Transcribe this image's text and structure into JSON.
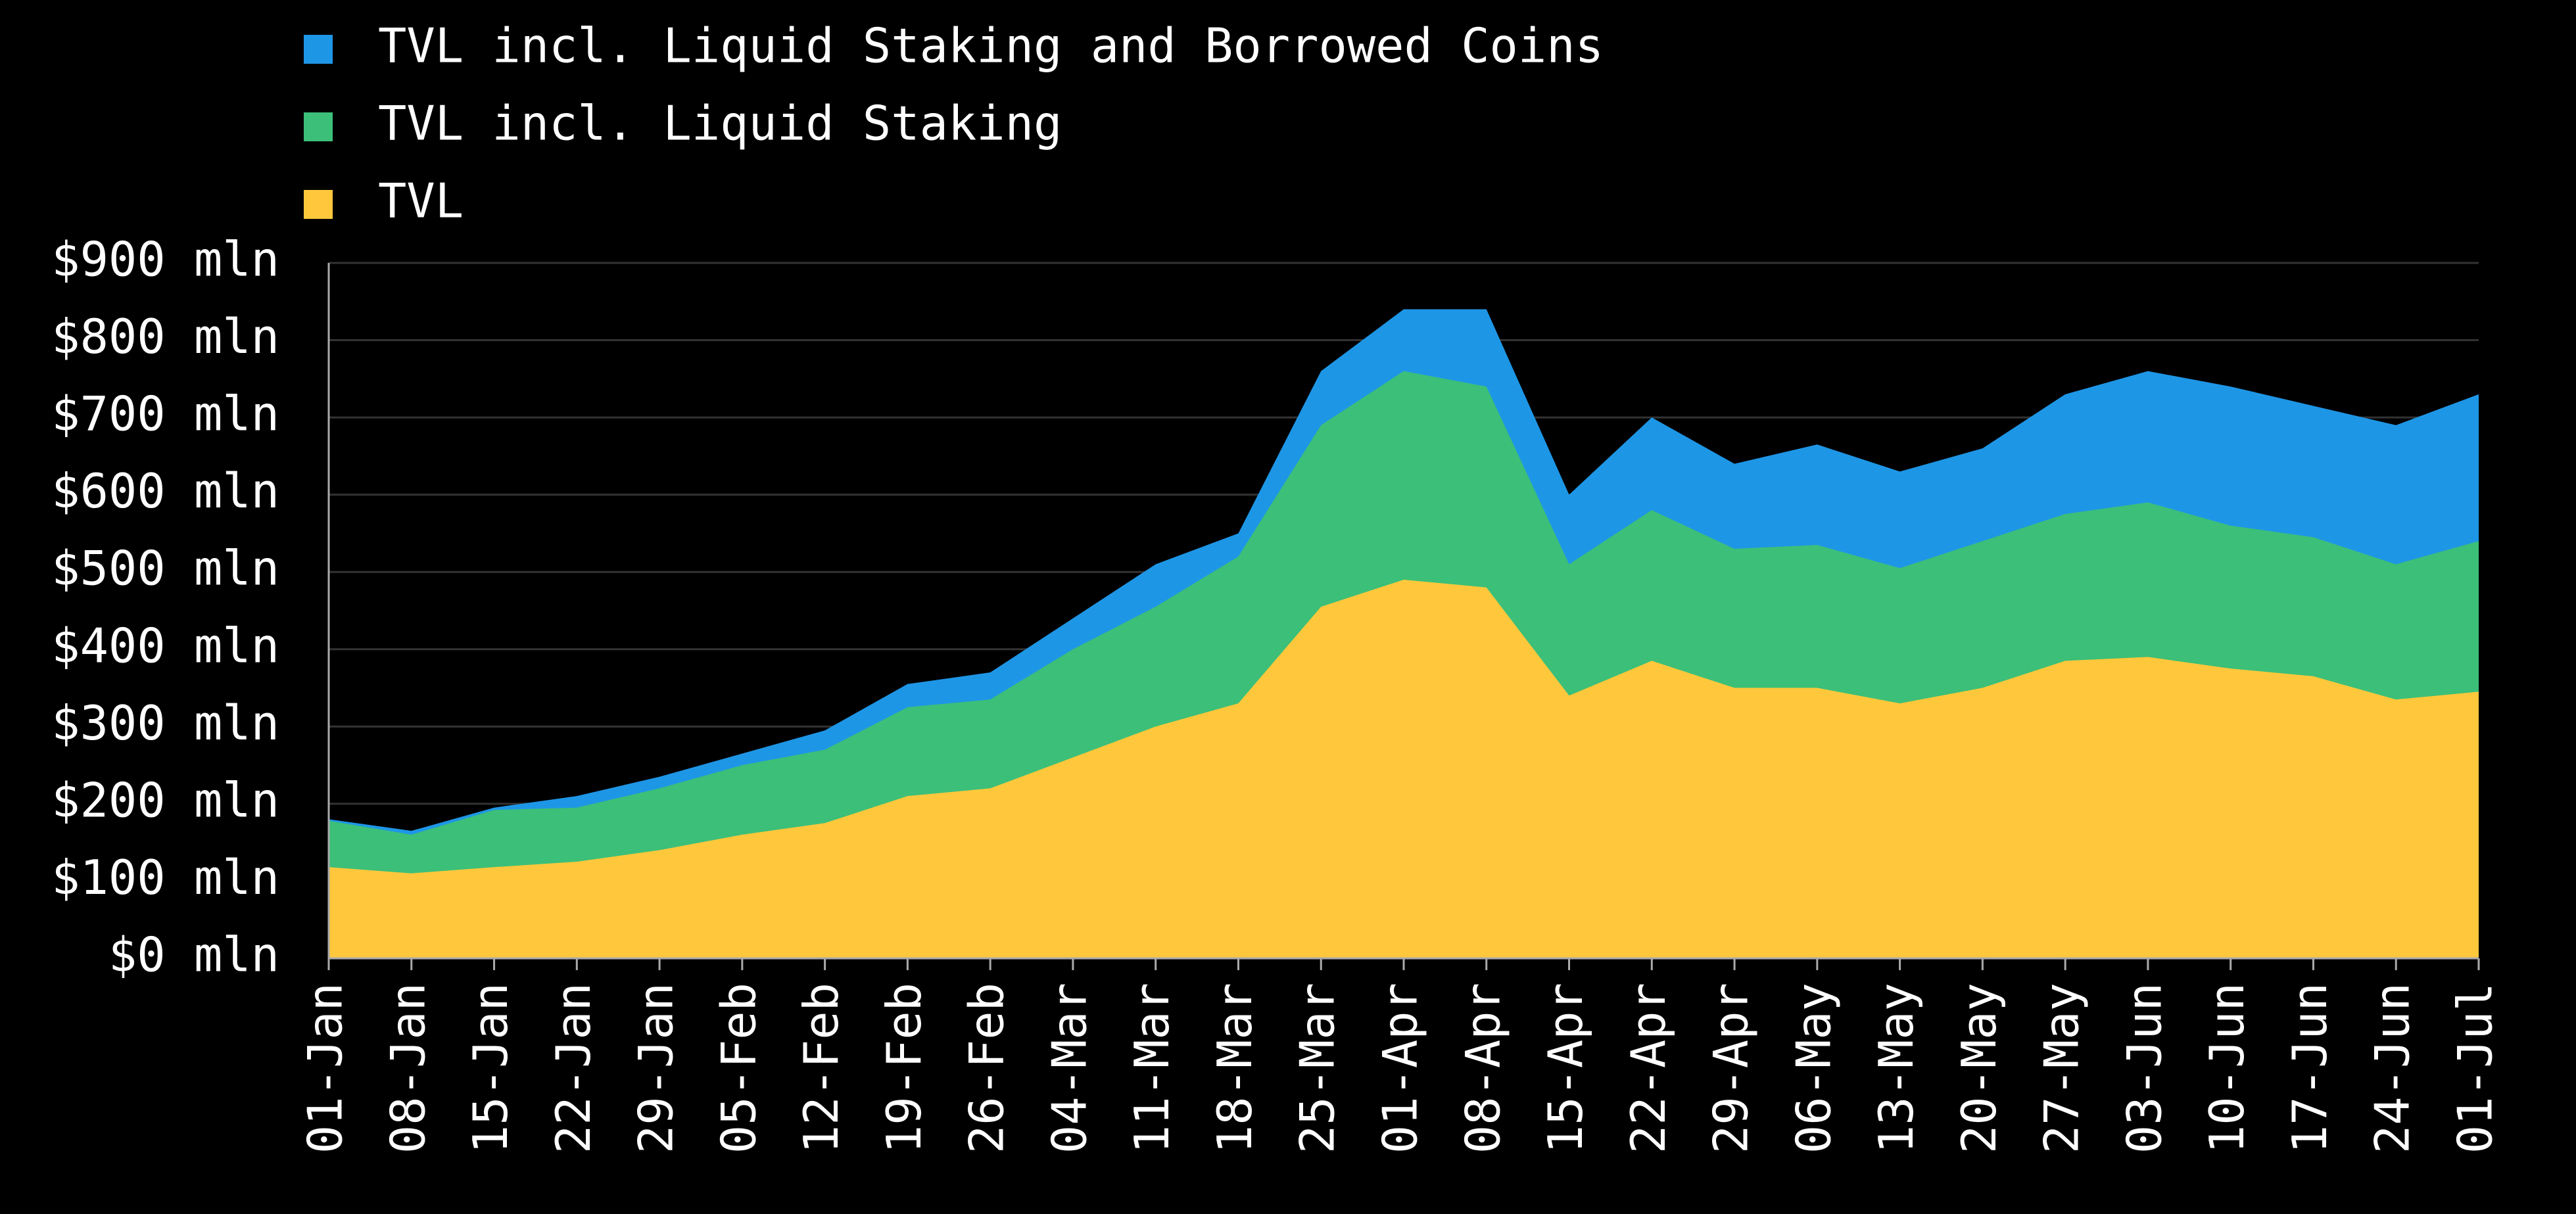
{
  "chart_data": {
    "type": "area",
    "categories": [
      "01-Jan",
      "08-Jan",
      "15-Jan",
      "22-Jan",
      "29-Jan",
      "05-Feb",
      "12-Feb",
      "19-Feb",
      "26-Feb",
      "04-Mar",
      "11-Mar",
      "18-Mar",
      "25-Mar",
      "01-Apr",
      "08-Apr",
      "15-Apr",
      "22-Apr",
      "29-Apr",
      "06-May",
      "13-May",
      "20-May",
      "27-May",
      "03-Jun",
      "10-Jun",
      "17-Jun",
      "24-Jun",
      "01-Jul"
    ],
    "series": [
      {
        "name": "TVL incl. Liquid Staking and Borrowed Coins",
        "color": "#1e96e6",
        "values": [
          180,
          165,
          195,
          210,
          235,
          265,
          295,
          355,
          370,
          440,
          510,
          550,
          760,
          840,
          840,
          600,
          700,
          640,
          665,
          630,
          660,
          730,
          760,
          740,
          715,
          690,
          730
        ]
      },
      {
        "name": "TVL incl. Liquid Staking",
        "color": "#3cbf78",
        "values": [
          178,
          160,
          192,
          195,
          220,
          250,
          270,
          325,
          335,
          400,
          455,
          520,
          690,
          760,
          740,
          510,
          580,
          530,
          535,
          505,
          540,
          575,
          590,
          560,
          545,
          510,
          540
        ]
      },
      {
        "name": "TVL",
        "color": "#ffc83c",
        "values": [
          118,
          110,
          118,
          125,
          140,
          160,
          175,
          210,
          220,
          260,
          300,
          330,
          455,
          490,
          480,
          340,
          385,
          350,
          350,
          330,
          350,
          385,
          390,
          375,
          365,
          335,
          345
        ]
      }
    ],
    "ylim": [
      0,
      900
    ],
    "yticks": [
      {
        "value": 0,
        "label": "$0 mln"
      },
      {
        "value": 100,
        "label": "$100 mln"
      },
      {
        "value": 200,
        "label": "$200 mln"
      },
      {
        "value": 300,
        "label": "$300 mln"
      },
      {
        "value": 400,
        "label": "$400 mln"
      },
      {
        "value": 500,
        "label": "$500 mln"
      },
      {
        "value": 600,
        "label": "$600 mln"
      },
      {
        "value": 700,
        "label": "$700 mln"
      },
      {
        "value": 800,
        "label": "$800 mln"
      },
      {
        "value": 900,
        "label": "$900 mln"
      }
    ],
    "grid": true
  }
}
